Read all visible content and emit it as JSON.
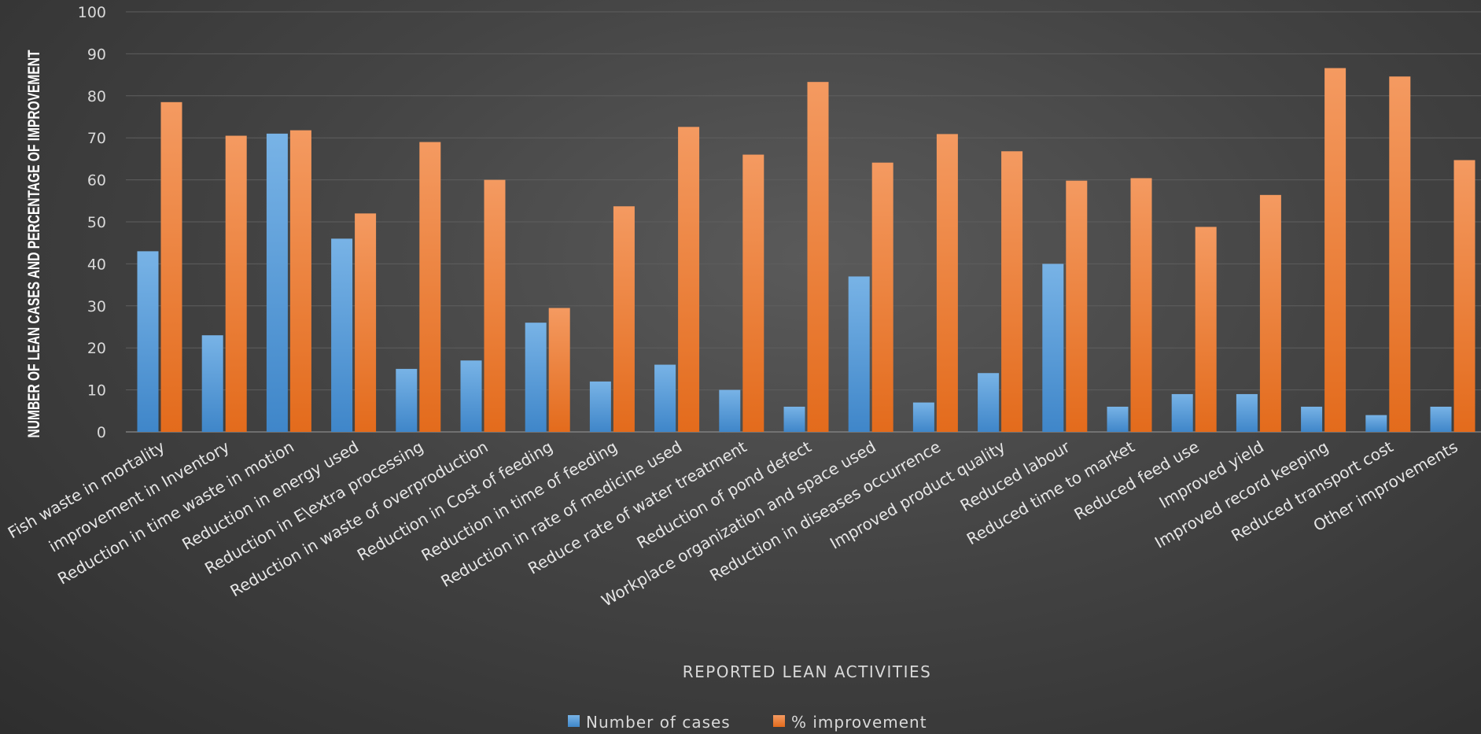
{
  "chart_data": {
    "type": "bar",
    "title": "",
    "xlabel": "REPORTED LEAN ACTIVITIES",
    "ylabel": "NUMBER OF LEAN CASES AND PERCENTAGE OF IMPROVEMENT",
    "ylim": [
      0,
      100
    ],
    "yticks": [
      0,
      10,
      20,
      30,
      40,
      50,
      60,
      70,
      80,
      90,
      100
    ],
    "grid": true,
    "legend_position": "bottom",
    "categories": [
      "Fish waste in mortality",
      "improvement in Inventory",
      "Reduction in time waste in motion",
      "Reduction in energy used",
      "Reduction in E\\extra processing",
      "Reduction in waste of overproduction",
      "Reduction in Cost of feeding",
      "Reduction in time of feeding",
      "Reduction in rate of medicine used",
      "Reduce rate of water treatment",
      "Reduction of pond defect",
      "Workplace organization and space used",
      "Reduction in diseases occurrence",
      "Improved product quality",
      "Reduced labour",
      "Reduced time to market",
      "Reduced feed use",
      "Improved yield",
      "Improved record keeping",
      "Reduced transport cost",
      "Other improvements"
    ],
    "series": [
      {
        "name": "Number of cases",
        "color": "#5b9bd5",
        "values": [
          43,
          23,
          71,
          46,
          15,
          17,
          26,
          12,
          16,
          10,
          6,
          37,
          7,
          14,
          40,
          6,
          9,
          9,
          6,
          4,
          6
        ]
      },
      {
        "name": "% improvement",
        "color": "#ed7d31",
        "values": [
          78.5,
          70.5,
          71.8,
          52,
          69,
          60,
          29.5,
          53.7,
          72.6,
          66,
          83.3,
          64.1,
          70.9,
          66.8,
          59.8,
          60.4,
          48.8,
          56.4,
          86.6,
          84.6,
          64.7
        ]
      }
    ]
  }
}
